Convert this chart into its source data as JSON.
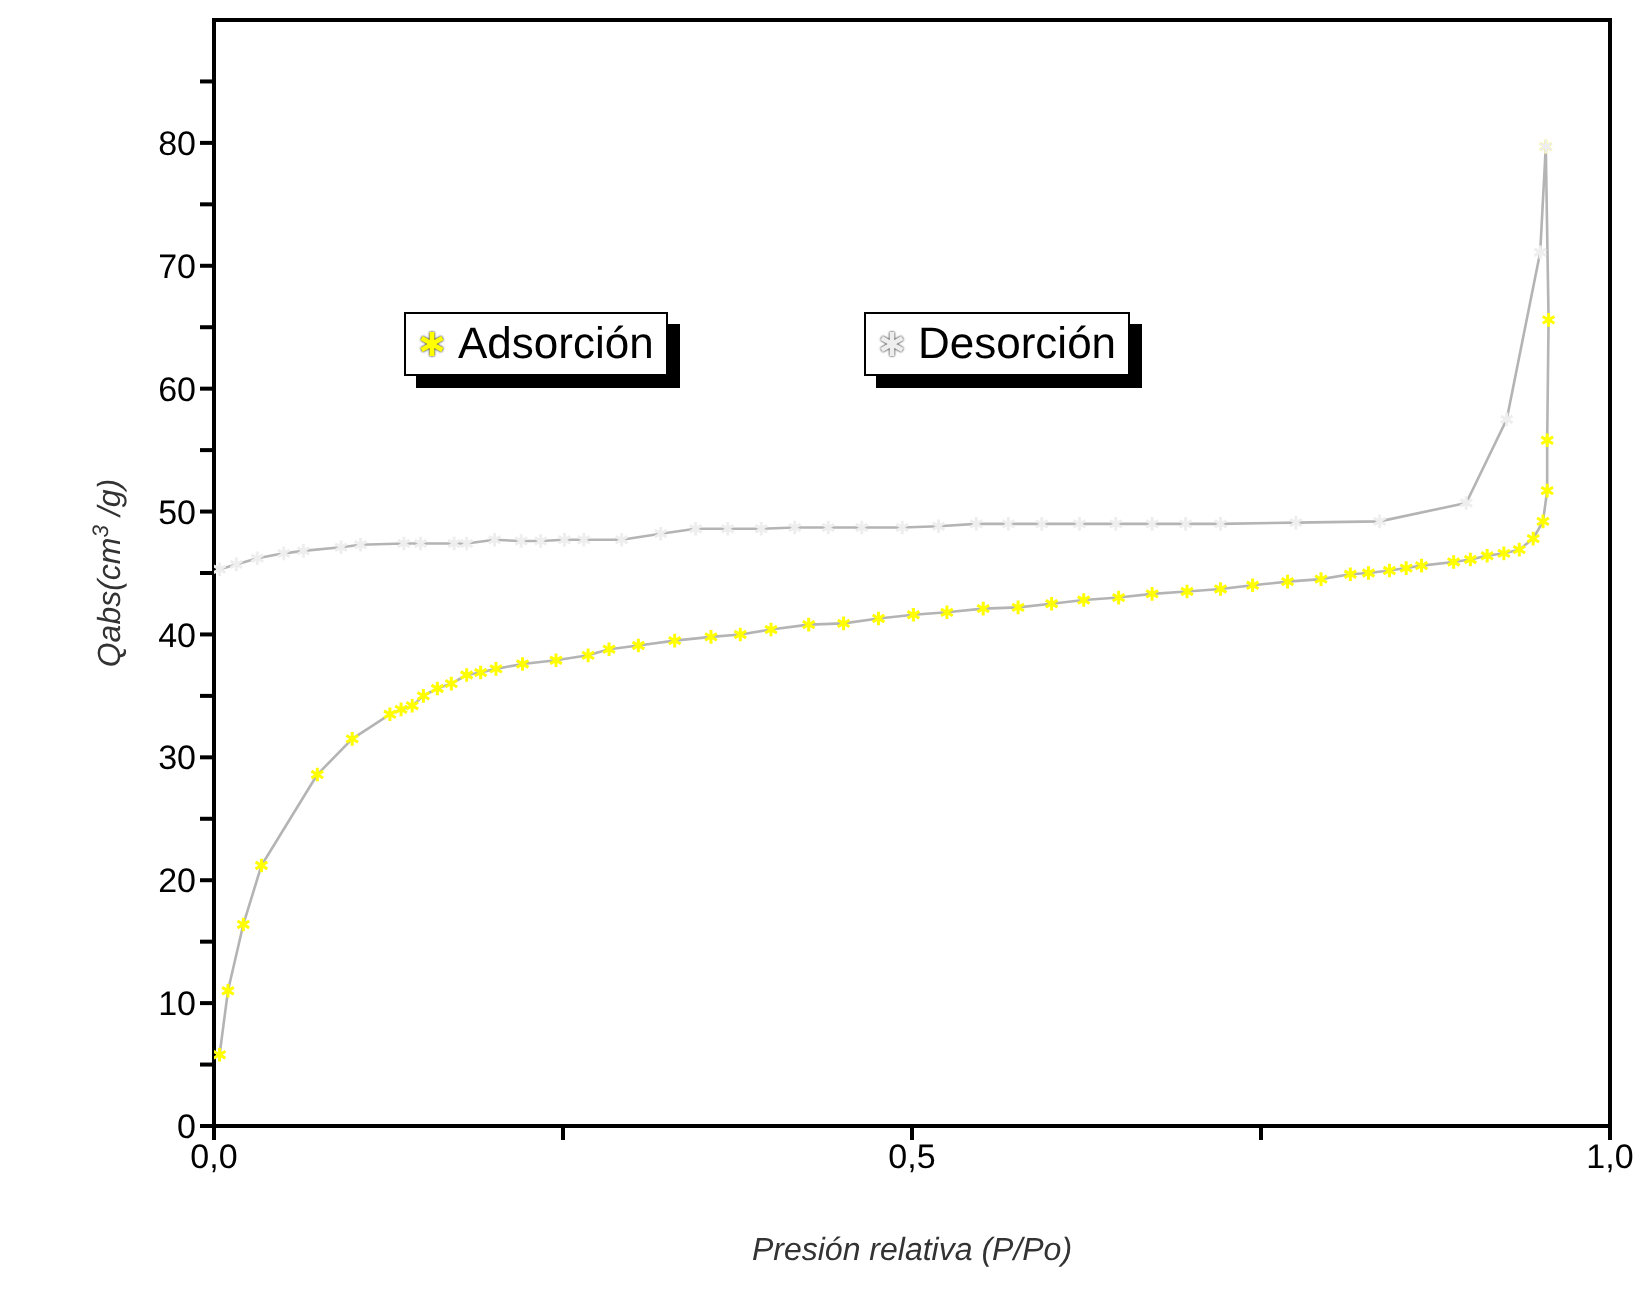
{
  "chart_data": {
    "type": "line",
    "xlabel": "Presión relativa (P/Po)",
    "ylabel": "Qabs(cm$^{3}$/g)",
    "xlim": [
      0,
      1
    ],
    "ylim": [
      0,
      90
    ],
    "xticks": [
      {
        "value": 0,
        "label": "0,0"
      },
      {
        "value": 0.25,
        "label": null
      },
      {
        "value": 0.5,
        "label": "0,5"
      },
      {
        "value": 0.75,
        "label": null
      },
      {
        "value": 1,
        "label": "1,0"
      }
    ],
    "yticks": [
      0,
      {
        "value": 5,
        "label": null
      },
      10,
      {
        "value": 15,
        "label": null
      },
      20,
      {
        "value": 25,
        "label": null
      },
      30,
      {
        "value": 35,
        "label": null
      },
      40,
      {
        "value": 45,
        "label": null
      },
      50,
      {
        "value": 55,
        "label": null
      },
      60,
      {
        "value": 65,
        "label": null
      },
      70,
      {
        "value": 75,
        "label": null
      },
      80,
      {
        "value": 85,
        "label": null
      }
    ],
    "marker": "cross",
    "legend": "top",
    "series": [
      {
        "name": "Adsorción",
        "color": "#ffff00",
        "x": [
          0.004,
          0.01,
          0.021,
          0.034,
          0.074,
          0.099,
          0.126,
          0.134,
          0.142,
          0.15,
          0.16,
          0.17,
          0.181,
          0.191,
          0.202,
          0.221,
          0.245,
          0.268,
          0.283,
          0.304,
          0.33,
          0.356,
          0.377,
          0.399,
          0.426,
          0.451,
          0.476,
          0.501,
          0.525,
          0.551,
          0.576,
          0.6,
          0.623,
          0.648,
          0.672,
          0.697,
          0.721,
          0.744,
          0.769,
          0.793,
          0.814,
          0.827,
          0.842,
          0.854,
          0.865,
          0.888,
          0.9,
          0.912,
          0.924,
          0.935,
          0.945,
          0.952,
          0.955,
          0.955,
          0.956,
          0.954
        ],
        "values": [
          5.8,
          11.0,
          16.4,
          21.2,
          28.6,
          31.5,
          33.5,
          33.9,
          34.2,
          35.0,
          35.6,
          36.0,
          36.7,
          36.9,
          37.2,
          37.6,
          37.9,
          38.3,
          38.8,
          39.1,
          39.5,
          39.8,
          40.0,
          40.4,
          40.8,
          40.9,
          41.3,
          41.6,
          41.8,
          42.1,
          42.2,
          42.5,
          42.8,
          43.0,
          43.3,
          43.5,
          43.7,
          44.0,
          44.3,
          44.5,
          44.9,
          45.0,
          45.2,
          45.4,
          45.6,
          45.9,
          46.1,
          46.4,
          46.6,
          46.9,
          47.8,
          49.2,
          51.7,
          55.8,
          65.6,
          79.7
        ]
      },
      {
        "name": "Desorción",
        "color": "#eeeeee",
        "x": [
          0.954,
          0.95,
          0.926,
          0.897,
          0.835,
          0.775,
          0.721,
          0.696,
          0.672,
          0.646,
          0.62,
          0.593,
          0.569,
          0.546,
          0.519,
          0.493,
          0.464,
          0.44,
          0.416,
          0.392,
          0.368,
          0.345,
          0.32,
          0.292,
          0.265,
          0.251,
          0.234,
          0.22,
          0.201,
          0.181,
          0.172,
          0.148,
          0.136,
          0.105,
          0.091,
          0.064,
          0.05,
          0.031,
          0.016,
          0.004
        ],
        "values": [
          79.7,
          71.1,
          57.5,
          50.7,
          49.2,
          49.1,
          49.0,
          49.0,
          49.0,
          49.0,
          49.0,
          49.0,
          49.0,
          49.0,
          48.8,
          48.7,
          48.7,
          48.7,
          48.7,
          48.6,
          48.6,
          48.6,
          48.2,
          47.7,
          47.7,
          47.7,
          47.6,
          47.6,
          47.7,
          47.4,
          47.4,
          47.4,
          47.4,
          47.3,
          47.1,
          46.8,
          46.6,
          46.2,
          45.7,
          45.3
        ]
      }
    ]
  }
}
